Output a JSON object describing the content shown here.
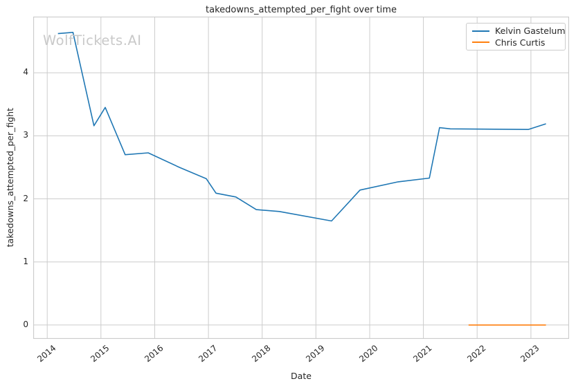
{
  "watermark": "WolfTickets.AI",
  "chart_data": {
    "type": "line",
    "title": "takedowns_attempted_per_fight over time",
    "xlabel": "Date",
    "ylabel": "takedowns_attempted_per_fight",
    "x_ticks": [
      2014,
      2015,
      2016,
      2017,
      2018,
      2019,
      2020,
      2021,
      2022,
      2023
    ],
    "y_ticks": [
      0,
      1,
      2,
      3,
      4
    ],
    "xlim": [
      2013.74,
      2023.71
    ],
    "ylim": [
      -0.22,
      4.89
    ],
    "grid": true,
    "grid_color": "#cccccc",
    "text_color": "#262626",
    "watermark_color": "#c9c9c9",
    "background": "#ffffff",
    "legend_position": "top-right",
    "series": [
      {
        "name": "Kelvin Gastelum",
        "color": "#1f77b4",
        "x": [
          2014.2,
          2014.48,
          2014.87,
          2015.08,
          2015.45,
          2015.88,
          2016.46,
          2016.96,
          2017.14,
          2017.51,
          2017.89,
          2018.32,
          2019.29,
          2019.82,
          2020.53,
          2021.11,
          2021.3,
          2021.5,
          2022.95,
          2023.28
        ],
        "y": [
          4.62,
          4.64,
          3.16,
          3.45,
          2.7,
          2.73,
          2.5,
          2.32,
          2.09,
          2.03,
          1.83,
          1.8,
          1.65,
          2.14,
          2.27,
          2.33,
          3.13,
          3.11,
          3.1,
          3.19
        ]
      },
      {
        "name": "Chris Curtis",
        "color": "#ff7f0e",
        "x": [
          2021.84,
          2023.28
        ],
        "y": [
          0.0,
          0.0
        ]
      }
    ]
  }
}
